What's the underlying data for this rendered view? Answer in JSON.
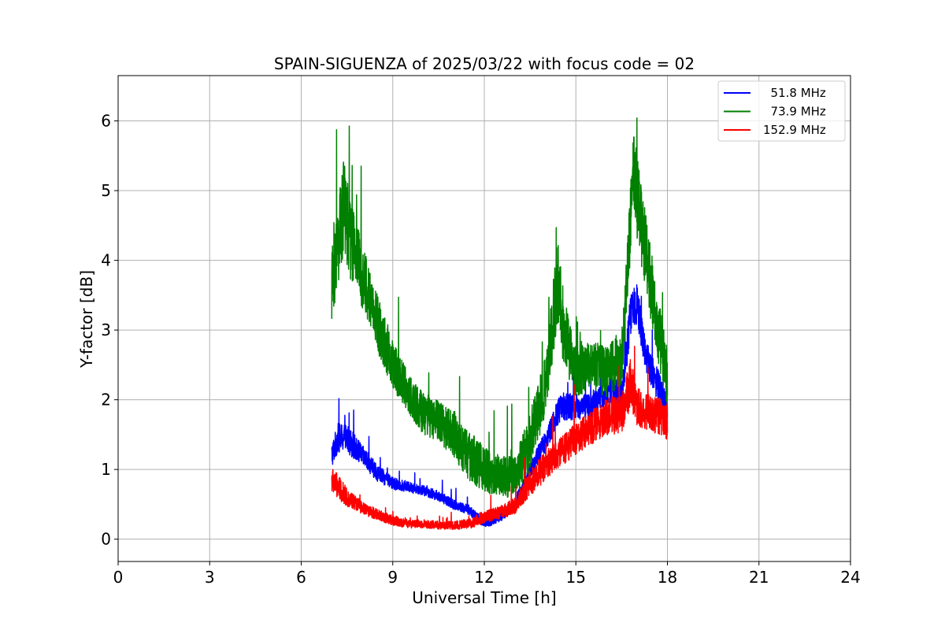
{
  "chart_data": {
    "type": "line",
    "title": "SPAIN-SIGUENZA of 2025/03/22 with focus code = 02",
    "xlabel": "Universal Time [h]",
    "ylabel": "Y-factor [dB]",
    "xlim": [
      0,
      24
    ],
    "ylim": [
      -0.32,
      6.65
    ],
    "xticks": [
      0,
      3,
      6,
      9,
      12,
      15,
      18,
      21,
      24
    ],
    "yticks": [
      0,
      1,
      2,
      3,
      4,
      5,
      6
    ],
    "grid": true,
    "legend_position": "top-right",
    "series": [
      {
        "name": "51.8 MHz",
        "label": "  51.8 MHz",
        "color": "#0000ff",
        "x": [
          7.0,
          7.2,
          7.5,
          8.0,
          8.5,
          9.0,
          9.5,
          10.0,
          10.5,
          11.0,
          11.5,
          12.0,
          12.5,
          13.0,
          13.5,
          14.0,
          14.5,
          15.0,
          15.5,
          16.0,
          16.5,
          16.8,
          17.0,
          17.3,
          17.6,
          18.0
        ],
        "values": [
          1.2,
          1.45,
          1.45,
          1.2,
          0.95,
          0.8,
          0.75,
          0.7,
          0.62,
          0.5,
          0.42,
          0.22,
          0.3,
          0.5,
          1.0,
          1.4,
          1.9,
          1.9,
          1.9,
          2.1,
          2.1,
          3.2,
          3.4,
          2.6,
          2.3,
          1.9
        ],
        "noise": [
          0.3,
          0.35,
          0.35,
          0.25,
          0.2,
          0.15,
          0.12,
          0.12,
          0.12,
          0.12,
          0.12,
          0.1,
          0.1,
          0.15,
          0.2,
          0.25,
          0.35,
          0.3,
          0.3,
          0.3,
          0.35,
          0.5,
          0.5,
          0.4,
          0.4,
          0.3
        ]
      },
      {
        "name": "73.9 MHz",
        "label": "  73.9 MHz",
        "color": "#008000",
        "x": [
          7.0,
          7.2,
          7.4,
          7.6,
          8.0,
          8.5,
          9.0,
          9.5,
          10.0,
          10.5,
          11.0,
          11.5,
          12.0,
          12.5,
          13.0,
          13.5,
          14.0,
          14.4,
          14.6,
          15.0,
          15.5,
          16.0,
          16.5,
          16.9,
          17.1,
          17.4,
          17.7,
          18.0
        ],
        "values": [
          3.6,
          4.2,
          4.8,
          4.3,
          3.8,
          3.1,
          2.5,
          2.1,
          1.8,
          1.7,
          1.5,
          1.2,
          1.0,
          0.9,
          0.9,
          1.4,
          2.2,
          3.7,
          3.0,
          2.4,
          2.5,
          2.4,
          2.6,
          5.3,
          4.6,
          3.8,
          3.0,
          2.3
        ],
        "noise": [
          0.9,
          1.0,
          1.1,
          1.0,
          0.8,
          0.7,
          0.6,
          0.5,
          0.5,
          0.5,
          0.55,
          0.6,
          0.55,
          0.5,
          0.5,
          0.7,
          0.7,
          1.0,
          0.9,
          0.6,
          0.6,
          0.6,
          0.7,
          1.0,
          1.0,
          0.9,
          0.8,
          0.7
        ]
      },
      {
        "name": "152.9 MHz",
        "label": "152.9 MHz",
        "color": "#ff0000",
        "x": [
          7.0,
          7.2,
          7.5,
          8.0,
          8.5,
          9.0,
          9.5,
          10.0,
          10.5,
          11.0,
          11.5,
          12.0,
          12.5,
          13.0,
          13.5,
          14.0,
          14.5,
          15.0,
          15.5,
          16.0,
          16.5,
          16.8,
          17.0,
          17.5,
          18.0
        ],
        "values": [
          0.85,
          0.75,
          0.6,
          0.45,
          0.35,
          0.27,
          0.22,
          0.22,
          0.2,
          0.2,
          0.22,
          0.32,
          0.38,
          0.48,
          0.8,
          1.05,
          1.25,
          1.45,
          1.6,
          1.75,
          1.8,
          2.25,
          1.9,
          1.8,
          1.7
        ],
        "noise": [
          0.3,
          0.3,
          0.22,
          0.15,
          0.13,
          0.12,
          0.1,
          0.1,
          0.1,
          0.1,
          0.12,
          0.15,
          0.15,
          0.2,
          0.3,
          0.35,
          0.35,
          0.4,
          0.4,
          0.45,
          0.45,
          0.6,
          0.45,
          0.45,
          0.45
        ]
      }
    ]
  }
}
